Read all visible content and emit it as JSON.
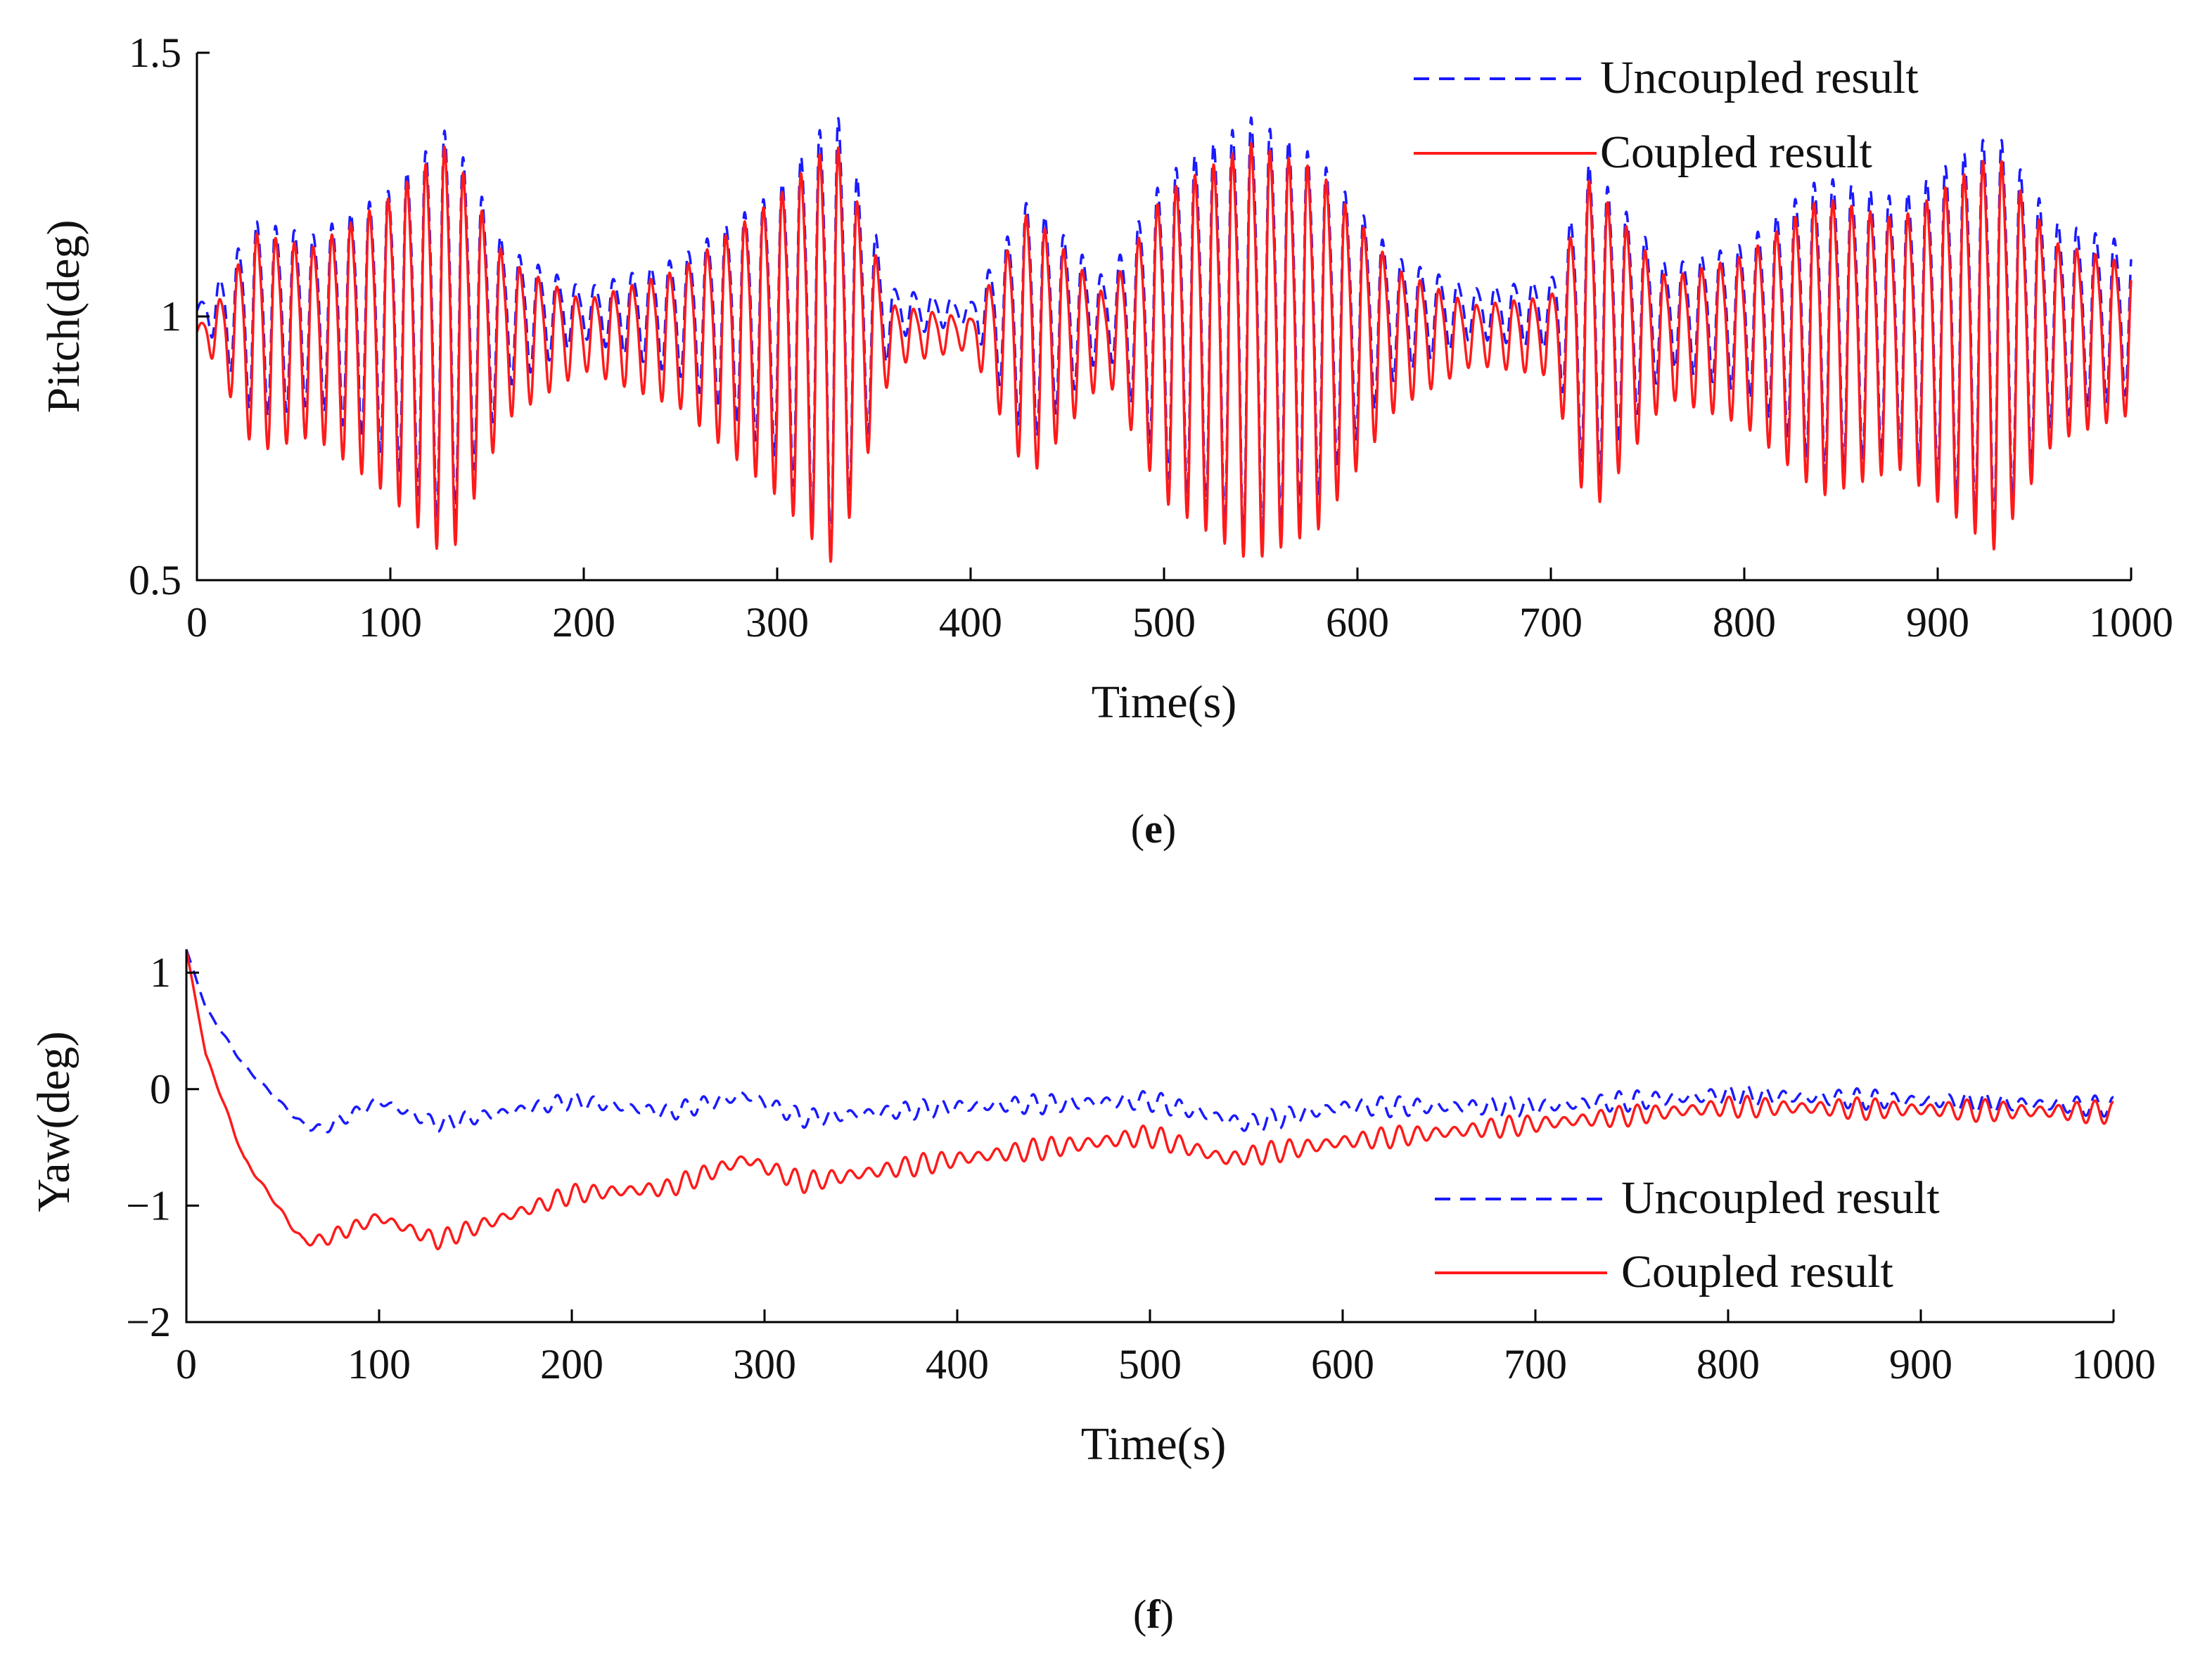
{
  "chart_data": [
    {
      "id": "pitch",
      "type": "line",
      "caption_letter": "e",
      "xlabel": "Time(s)",
      "ylabel": "Pitch(deg)",
      "xlim": [
        0,
        1000
      ],
      "ylim": [
        0.5,
        1.5
      ],
      "xticks": [
        0,
        100,
        200,
        300,
        400,
        500,
        600,
        700,
        800,
        900,
        1000
      ],
      "xtick_labels": [
        "0",
        "100",
        "200",
        "300",
        "400",
        "500",
        "600",
        "700",
        "800",
        "900",
        "1000"
      ],
      "yticks": [
        0.5,
        1,
        1.5
      ],
      "ytick_labels": [
        "0.5",
        "1",
        "1.5"
      ],
      "legend_position": "top-right",
      "series": [
        {
          "name": "Uncoupled result",
          "color": "#1a1aff",
          "dash": "dashed",
          "period_s": 9.7,
          "baseline": 1.01,
          "envelope": {
            "t": [
              0,
              10,
              30,
              60,
              100,
              130,
              160,
              200,
              250,
              300,
              330,
              360,
              400,
              430,
              470,
              500,
              545,
              580,
              620,
              660,
              700,
              720,
              760,
              800,
              840,
              880,
              930,
              960,
              1000
            ],
            "amp": [
              0.01,
              0.06,
              0.2,
              0.17,
              0.27,
              0.41,
              0.14,
              0.05,
              0.12,
              0.27,
              0.45,
              0.05,
              0.02,
              0.25,
              0.07,
              0.3,
              0.43,
              0.34,
              0.12,
              0.05,
              0.07,
              0.33,
              0.1,
              0.15,
              0.3,
              0.25,
              0.4,
              0.2,
              0.15
            ]
          }
        },
        {
          "name": "Coupled result",
          "color": "#ff1a1a",
          "dash": "solid",
          "period_s": 9.7,
          "baseline": 0.97,
          "envelope": {
            "t": [
              0,
              10,
              30,
              60,
              100,
              130,
              160,
              200,
              250,
              300,
              330,
              360,
              400,
              430,
              470,
              500,
              545,
              580,
              620,
              660,
              700,
              720,
              760,
              800,
              840,
              880,
              930,
              960,
              1000
            ],
            "amp": [
              0.01,
              0.06,
              0.22,
              0.19,
              0.3,
              0.42,
              0.16,
              0.07,
              0.14,
              0.3,
              0.43,
              0.06,
              0.03,
              0.27,
              0.08,
              0.31,
              0.42,
              0.36,
              0.14,
              0.06,
              0.08,
              0.34,
              0.12,
              0.17,
              0.3,
              0.25,
              0.4,
              0.2,
              0.15
            ]
          }
        }
      ]
    },
    {
      "id": "yaw",
      "type": "line",
      "caption_letter": "f",
      "xlabel": "Time(s)",
      "ylabel": "Yaw(deg)",
      "xlim": [
        0,
        1000
      ],
      "ylim": [
        -2,
        1.2
      ],
      "xticks": [
        0,
        100,
        200,
        300,
        400,
        500,
        600,
        700,
        800,
        900,
        1000
      ],
      "xtick_labels": [
        "0",
        "100",
        "200",
        "300",
        "400",
        "500",
        "600",
        "700",
        "800",
        "900",
        "1000"
      ],
      "yticks": [
        -2,
        -1,
        0,
        1
      ],
      "ytick_labels": [
        "−2",
        "−1",
        "0",
        "1"
      ],
      "legend_position": "center-right",
      "series": [
        {
          "name": "Uncoupled result",
          "color": "#1a1aff",
          "dash": "dashed",
          "period_s": 9.5,
          "trend": {
            "t": [
              0,
              10,
              30,
              60,
              70,
              100,
              130,
              200,
              250,
              290,
              320,
              400,
              500,
              550,
              600,
              700,
              800,
              1000
            ],
            "v": [
              1.2,
              0.7,
              0.2,
              -0.3,
              -0.35,
              -0.1,
              -0.3,
              -0.1,
              -0.2,
              -0.05,
              -0.25,
              -0.15,
              -0.1,
              -0.3,
              -0.15,
              -0.15,
              -0.05,
              -0.15
            ]
          },
          "ripple": {
            "t": [
              0,
              50,
              100,
              300,
              500,
              700,
              1000
            ],
            "a": [
              0,
              0.03,
              0.07,
              0.08,
              0.09,
              0.09,
              0.09
            ]
          }
        },
        {
          "name": "Coupled result",
          "color": "#ff1a1a",
          "dash": "solid",
          "period_s": 9.5,
          "trend": {
            "t": [
              0,
              10,
              30,
              60,
              70,
              100,
              130,
              200,
              250,
              290,
              320,
              400,
              500,
              540,
              600,
              700,
              800,
              1000
            ],
            "v": [
              1.2,
              0.3,
              -0.6,
              -1.3,
              -1.3,
              -1.1,
              -1.3,
              -0.9,
              -0.85,
              -0.6,
              -0.8,
              -0.6,
              -0.4,
              -0.6,
              -0.45,
              -0.3,
              -0.15,
              -0.2
            ]
          },
          "ripple": {
            "t": [
              0,
              50,
              100,
              300,
              500,
              700,
              1000
            ],
            "a": [
              0,
              0.04,
              0.08,
              0.09,
              0.1,
              0.09,
              0.1
            ]
          }
        }
      ]
    }
  ]
}
